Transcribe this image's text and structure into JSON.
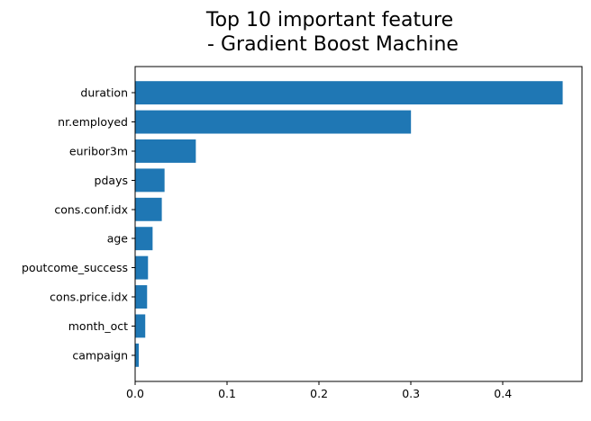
{
  "chart_data": {
    "type": "bar",
    "orientation": "horizontal",
    "title": {
      "lines": [
        "Top 10 important feature",
        " - Gradient Boost Machine"
      ]
    },
    "xlabel": "",
    "ylabel": "",
    "categories": [
      "duration",
      "nr.employed",
      "euribor3m",
      "pdays",
      "cons.conf.idx",
      "age",
      "poutcome_success",
      "cons.price.idx",
      "month_oct",
      "campaign"
    ],
    "values": [
      0.465,
      0.3,
      0.066,
      0.032,
      0.029,
      0.019,
      0.014,
      0.013,
      0.011,
      0.004
    ],
    "xlim": [
      0,
      0.486
    ],
    "xticks": [
      0.0,
      0.1,
      0.2,
      0.3,
      0.4
    ],
    "xtick_labels": [
      "0.0",
      "0.1",
      "0.2",
      "0.3",
      "0.4"
    ],
    "bar_color": "#1f77b4",
    "grid": false,
    "legend": "none"
  }
}
